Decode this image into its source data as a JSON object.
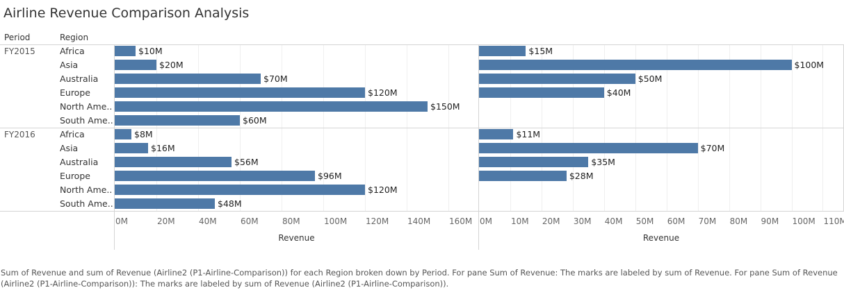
{
  "title": "Airline Revenue Comparison Analysis",
  "headers": {
    "period": "Period",
    "region": "Region"
  },
  "chart_data": {
    "type": "bar",
    "orientation": "horizontal",
    "periods": [
      "FY2015",
      "FY2016"
    ],
    "regions": [
      "Africa",
      "Asia",
      "Australia",
      "Europe",
      "North Ame..",
      "South Ame.."
    ],
    "panes": [
      {
        "xlabel": "Revenue",
        "xlim": [
          0,
          170
        ],
        "ticks": [
          0,
          20,
          40,
          60,
          80,
          100,
          120,
          140,
          160
        ],
        "tick_labels": [
          "0M",
          "20M",
          "40M",
          "60M",
          "80M",
          "100M",
          "120M",
          "140M",
          "160M"
        ],
        "values": {
          "FY2015": [
            10,
            20,
            70,
            120,
            150,
            60
          ],
          "FY2016": [
            8,
            16,
            56,
            96,
            120,
            48
          ]
        },
        "labels": {
          "FY2015": [
            "$10M",
            "$20M",
            "$70M",
            "$120M",
            "$150M",
            "$60M"
          ],
          "FY2016": [
            "$8M",
            "$16M",
            "$56M",
            "$96M",
            "$120M",
            "$48M"
          ]
        }
      },
      {
        "xlabel": "Revenue",
        "xlim": [
          0,
          115
        ],
        "ticks": [
          0,
          10,
          20,
          30,
          40,
          50,
          60,
          70,
          80,
          90,
          100,
          110
        ],
        "tick_labels": [
          "0M",
          "10M",
          "20M",
          "30M",
          "40M",
          "50M",
          "60M",
          "70M",
          "80M",
          "90M",
          "100M",
          "110M"
        ],
        "values": {
          "FY2015": [
            15,
            100,
            50,
            40,
            null,
            null
          ],
          "FY2016": [
            11,
            70,
            35,
            28,
            null,
            null
          ]
        },
        "labels": {
          "FY2015": [
            "$15M",
            "$100M",
            "$50M",
            "$40M",
            null,
            null
          ],
          "FY2016": [
            "$11M",
            "$70M",
            "$35M",
            "$28M",
            null,
            null
          ]
        }
      }
    ],
    "colors": {
      "bar": "#4e79a7"
    }
  },
  "caption": "Sum of Revenue and sum of Revenue (Airline2 (P1-Airline-Comparison)) for each Region broken down by Period.  For pane Sum of Revenue:  The marks are labeled by sum of Revenue.  For pane Sum of Revenue (Airline2 (P1-Airline-Comparison)):  The marks are labeled by sum of Revenue (Airline2 (P1-Airline-Comparison))."
}
